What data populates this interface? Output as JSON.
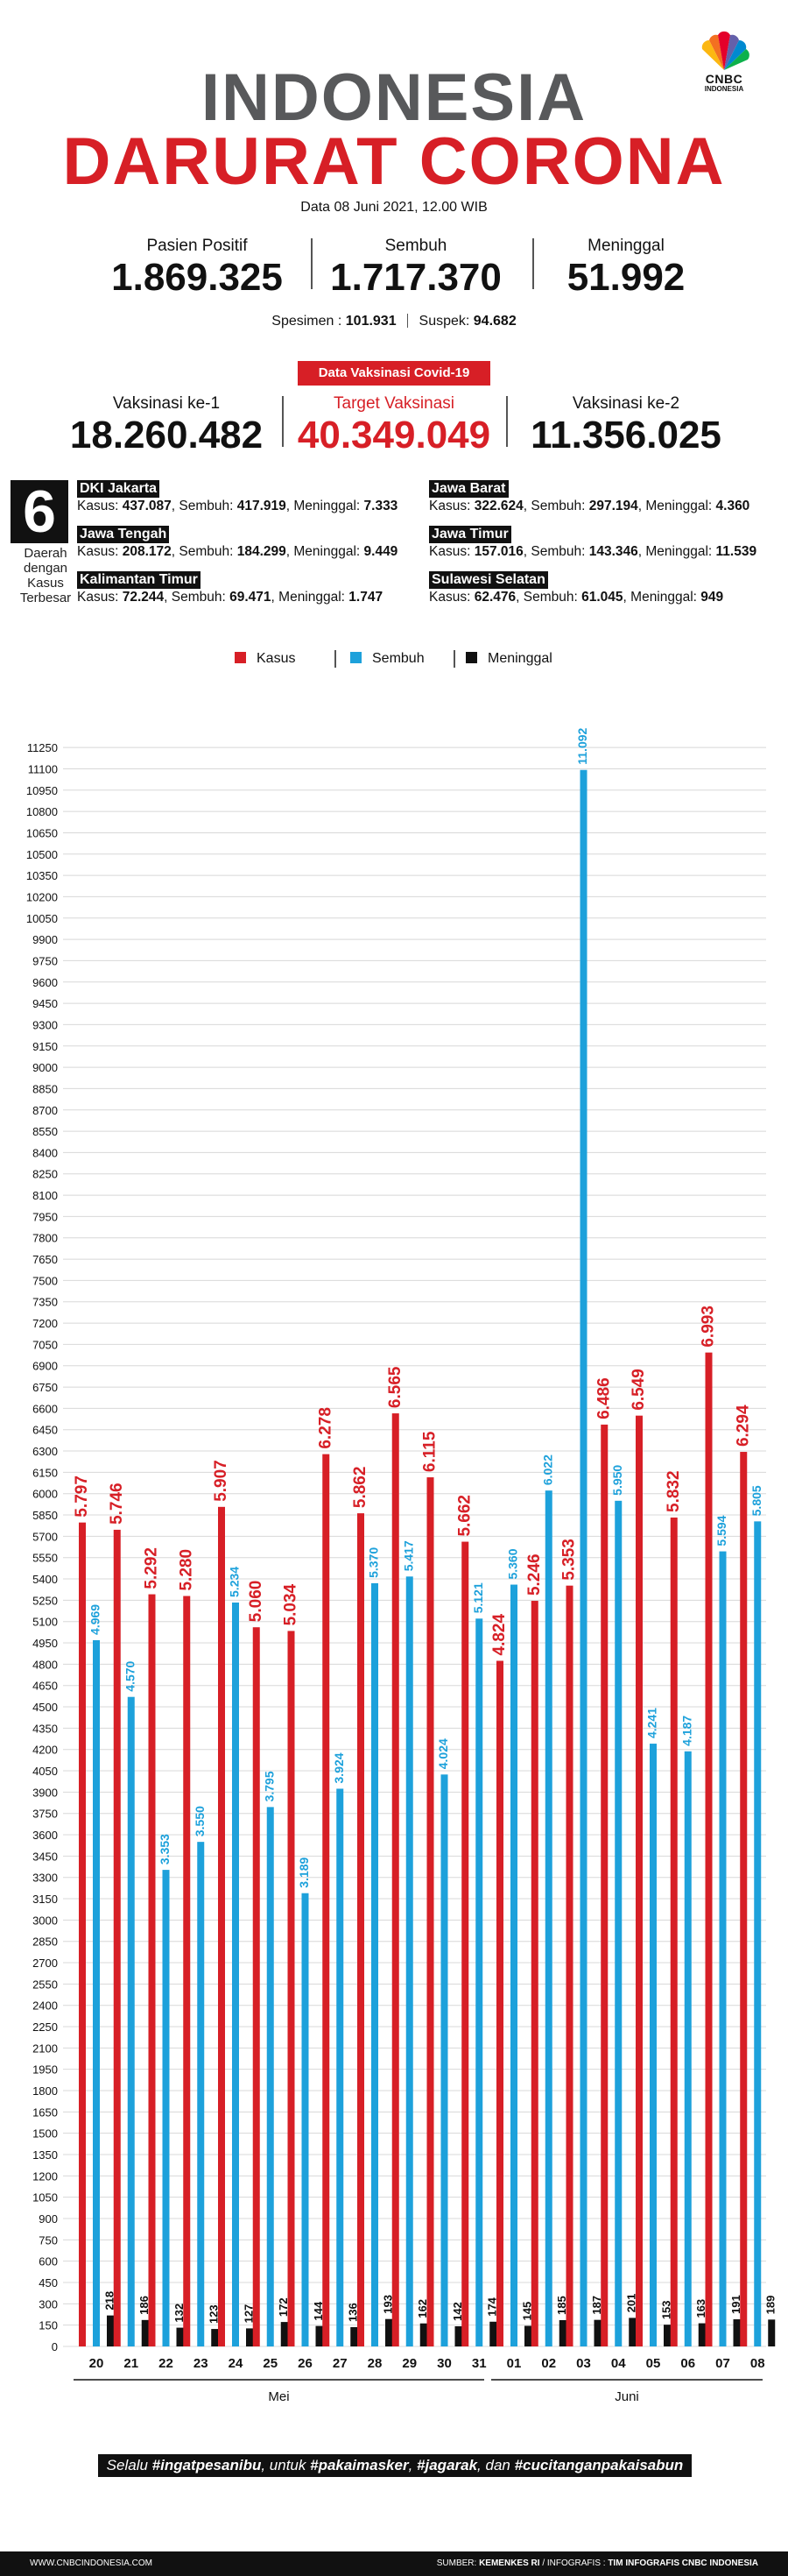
{
  "header": {
    "logo_text": "CNBC",
    "logo_sub": "INDONESIA",
    "title_line1": "INDONESIA",
    "title_line2": "DARURAT CORONA",
    "date": "Data 08 Juni 2021, 12.00 WIB"
  },
  "stats": {
    "positif_label": "Pasien Positif",
    "positif_value": "1.869.325",
    "sembuh_label": "Sembuh",
    "sembuh_value": "1.717.370",
    "meninggal_label": "Meninggal",
    "meninggal_value": "51.992",
    "spesimen_label": "Spesimen :",
    "spesimen_value": "101.931",
    "suspek_label": "Suspek:",
    "suspek_value": "94.682"
  },
  "vaksinasi": {
    "badge": "Data Vaksinasi Covid-19",
    "ke1_label": "Vaksinasi ke-1",
    "ke1_value": "18.260.482",
    "target_label": "Target Vaksinasi",
    "target_value": "40.349.049",
    "ke2_label": "Vaksinasi ke-2",
    "ke2_value": "11.356.025"
  },
  "daerah": {
    "count": "6",
    "caption": [
      "Daerah",
      "dengan",
      "Kasus",
      "Terbesar"
    ],
    "provinces": [
      {
        "name": "DKI Jakarta",
        "kasus": "437.087",
        "sembuh": "417.919",
        "meninggal": "7.333"
      },
      {
        "name": "Jawa Barat",
        "kasus": "322.624",
        "sembuh": "297.194",
        "meninggal": "4.360"
      },
      {
        "name": "Jawa Tengah",
        "kasus": "208.172",
        "sembuh": "184.299",
        "meninggal": "9.449"
      },
      {
        "name": "Jawa Timur",
        "kasus": "157.016",
        "sembuh": "143.346",
        "meninggal": "11.539"
      },
      {
        "name": "Kalimantan Timur",
        "kasus": "72.244",
        "sembuh": "69.471",
        "meninggal": "1.747"
      },
      {
        "name": "Sulawesi Selatan",
        "kasus": "62.476",
        "sembuh": "61.045",
        "meninggal": "949"
      }
    ],
    "kasus_word": "Kasus:",
    "sembuh_word": "Sembuh:",
    "meninggal_word": "Meninggal:"
  },
  "chart_data": {
    "type": "bar",
    "categories": [
      "20",
      "21",
      "22",
      "23",
      "24",
      "25",
      "26",
      "27",
      "28",
      "29",
      "30",
      "31",
      "01",
      "02",
      "03",
      "04",
      "05",
      "06",
      "07",
      "08"
    ],
    "month_groups": [
      {
        "label": "Mei",
        "from": 0,
        "to": 11
      },
      {
        "label": "Juni",
        "from": 12,
        "to": 19
      }
    ],
    "series": [
      {
        "name": "Kasus",
        "color": "#d71f26",
        "values": [
          5797,
          5746,
          5292,
          5280,
          5907,
          5060,
          5034,
          6278,
          5862,
          6565,
          6115,
          5662,
          4824,
          5246,
          5353,
          6486,
          6549,
          5832,
          6993,
          6294
        ],
        "labels": [
          "5.797",
          "5.746",
          "5.292",
          "5.280",
          "5.907",
          "5.060",
          "5.034",
          "6.278",
          "5.862",
          "6.565",
          "6.115",
          "5.662",
          "4.824",
          "5.246",
          "5.353",
          "6.486",
          "6.549",
          "5.832",
          "6.993",
          "6.294"
        ]
      },
      {
        "name": "Sembuh",
        "color": "#1da1db",
        "values": [
          4969,
          4570,
          3353,
          3550,
          5234,
          3795,
          3189,
          3924,
          5370,
          5417,
          4024,
          5121,
          5360,
          6022,
          11092,
          5950,
          4241,
          4187,
          5594,
          5805
        ],
        "labels": [
          "4.969",
          "4.570",
          "3.353",
          "3.550",
          "5.234",
          "3.795",
          "3.189",
          "3.924",
          "5.370",
          "5.417",
          "4.024",
          "5.121",
          "5.360",
          "6.022",
          "11.092",
          "5.950",
          "4.241",
          "4.187",
          "5.594",
          "5.805"
        ]
      },
      {
        "name": "Meninggal",
        "color": "#111111",
        "values": [
          218,
          186,
          132,
          123,
          127,
          172,
          144,
          136,
          193,
          162,
          142,
          174,
          145,
          185,
          187,
          201,
          153,
          163,
          191,
          189
        ],
        "labels": [
          "218",
          "186",
          "132",
          "123",
          "127",
          "172",
          "144",
          "136",
          "193",
          "162",
          "142",
          "174",
          "145",
          "185",
          "187",
          "201",
          "153",
          "163",
          "191",
          "189"
        ]
      }
    ],
    "ylim": [
      0,
      11300
    ],
    "ytick_step": 150,
    "grid": true,
    "legend": "top-center"
  },
  "slogan": {
    "p1": "Selalu ",
    "h1": "#ingatpesanibu",
    "p2": ", untuk ",
    "h2": "#pakaimasker",
    "p3": ", ",
    "h3": "#jagarak",
    "p4": ", dan ",
    "h4": "#cucitanganpakaisabun"
  },
  "footer": {
    "site": "WWW.CNBCINDONESIA.COM",
    "source_label": "SUMBER:",
    "source": "KEMENKES RI",
    "credit_label": "/ INFOGRAFIS :",
    "credit": "TIM INFOGRAFIS CNBC INDONESIA"
  }
}
